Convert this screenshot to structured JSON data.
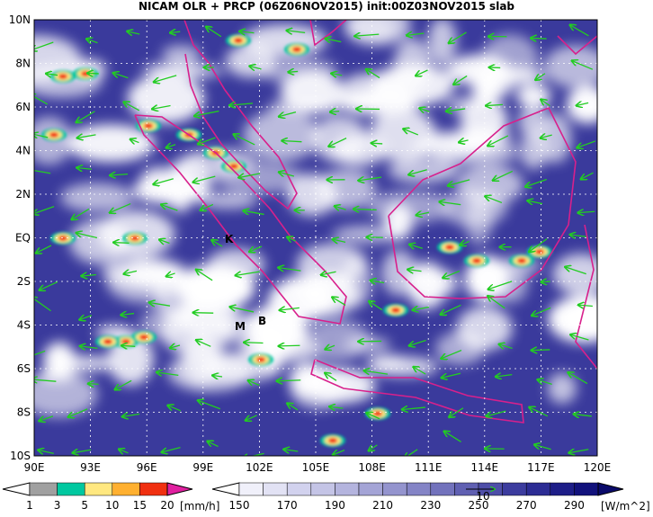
{
  "title": "NICAM OLR + PRCP (06Z06NOV2015) init:00Z03NOV2015 slab",
  "map": {
    "lon_labels": [
      "90E",
      "93E",
      "96E",
      "99E",
      "102E",
      "105E",
      "108E",
      "111E",
      "114E",
      "117E",
      "120E"
    ],
    "lat_labels": [
      "10N",
      "8N",
      "6N",
      "4N",
      "2N",
      "EQ",
      "2S",
      "4S",
      "6S",
      "8S",
      "10S"
    ],
    "markers": [
      "K",
      "M",
      "B"
    ]
  },
  "precip_colorbar": {
    "labels": [
      1,
      3,
      5,
      10,
      15,
      20
    ],
    "unit": "[mm/h]",
    "colors": [
      "#ffffff",
      "#a0a0a0",
      "#00c8a0",
      "#ffe880",
      "#ffb030",
      "#f03010",
      "#e020a0"
    ]
  },
  "olr_colorbar": {
    "labels": [
      150,
      170,
      190,
      210,
      230,
      250,
      270,
      290
    ],
    "unit": "[W/m^2]",
    "colors": [
      "#ffffff",
      "#f0f0fa",
      "#e2e2f4",
      "#d2d2ee",
      "#c4c4e6",
      "#b4b4de",
      "#a4a4d6",
      "#9494ce",
      "#8484c6",
      "#7272bc",
      "#6060b2",
      "#4e4ea8",
      "#3c3c9e",
      "#2c2c94",
      "#1e1e88",
      "#12127c",
      "#0a0a6a"
    ]
  },
  "vector_reference": "10"
}
